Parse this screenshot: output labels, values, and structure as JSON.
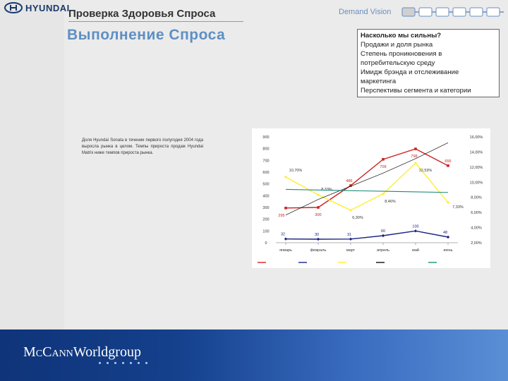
{
  "header": {
    "brand": "HYUNDAI",
    "subtitle": "Проверка Здоровья Спроса",
    "title": "Выполнение Спроса",
    "demand_vision_label": "Demand Vision"
  },
  "infobox": {
    "heading": "Насколько мы сильны?",
    "items": [
      "Продажи и доля рынка",
      "Степень проникновения в потребительскую среду",
      "Имидж брэнда и отслеживание маркетинга",
      "Перспективы сегмента и категории"
    ]
  },
  "description": "Доля Hyundai Sonata в течении первого полугодия 2004 года выросла рынка в целом. Темпы прироста продаж Hyundai Matrix ниже темпов прироста рынка.",
  "footer": {
    "brand_prefix": "McCann",
    "brand_suffix": "Worldgroup"
  },
  "colors": {
    "market": "#cc2222",
    "sonata": "#1a237e",
    "share": "#ffee33",
    "trend": "#111111",
    "share_trend": "#1f8a7a",
    "title_blue": "#5e8fc4",
    "footer_blue": "#14408c"
  },
  "chart_data": {
    "type": "line",
    "categories": [
      "январь",
      "февраль",
      "март",
      "апрель",
      "май",
      "июнь"
    ],
    "ylim": [
      0,
      900
    ],
    "yticks": [
      "0",
      "100",
      "200",
      "300",
      "400",
      "500",
      "600",
      "700",
      "800",
      "900"
    ],
    "y2lim": [
      0.02,
      0.16
    ],
    "y2ticks": [
      "2,00%",
      "4,00%",
      "6,00%",
      "8,00%",
      "10,00%",
      "12,00%",
      "14,00%",
      "16,00%"
    ],
    "series": [
      {
        "key": "market",
        "axis": "left",
        "values": [
          295,
          300,
          486,
          709,
          798,
          655
        ],
        "labels": [
          "295",
          "300",
          "486",
          "709",
          "798",
          "655"
        ]
      },
      {
        "key": "sonata",
        "axis": "left",
        "values": [
          32,
          30,
          31,
          60,
          100,
          48
        ],
        "labels": [
          "32",
          "30",
          "31",
          "60",
          "100",
          "48"
        ]
      },
      {
        "key": "share",
        "axis": "right",
        "values": [
          0.107,
          0.0833,
          0.063,
          0.0846,
          0.1253,
          0.0733
        ],
        "labels": [
          "10,70%",
          "8,33%",
          "6,30%",
          "8,46%",
          "12,53%",
          "7,33%"
        ]
      },
      {
        "key": "trend",
        "axis": "left",
        "values": [
          235,
          368,
          480,
          592,
          715,
          850
        ],
        "labels": []
      },
      {
        "key": "share_trend",
        "axis": "right",
        "values": [
          0.0905,
          0.0897,
          0.0889,
          0.0881,
          0.0873,
          0.0865
        ],
        "labels": []
      }
    ]
  }
}
